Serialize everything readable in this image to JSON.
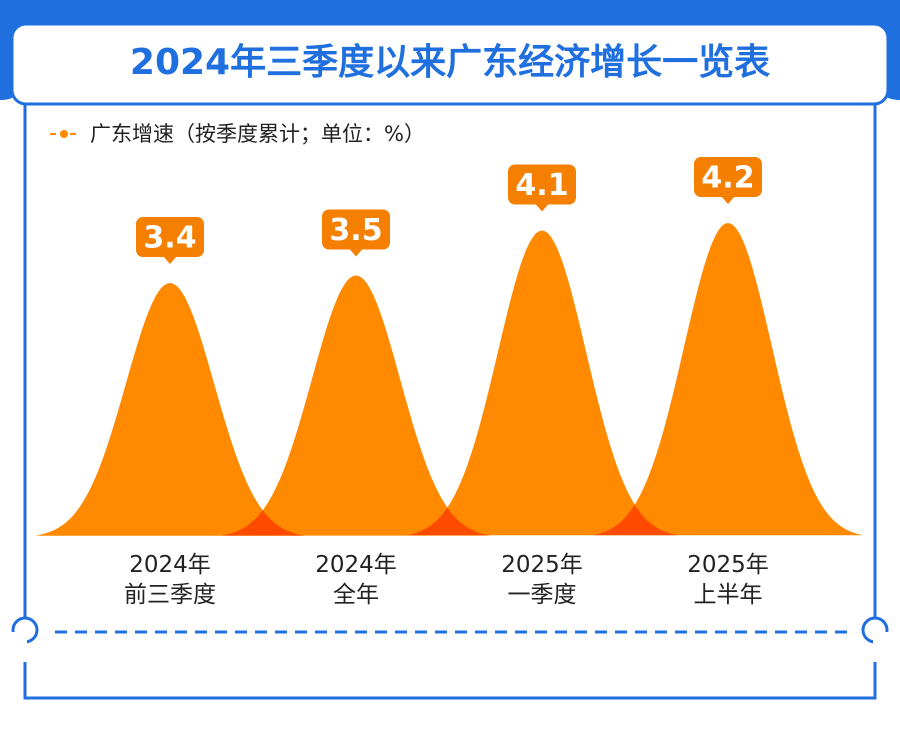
{
  "chart_data": {
    "type": "bell",
    "title": "2024年三季度以来广东经济增长一览表",
    "categories": [
      "2024年\n前三季度",
      "2024年\n全年",
      "2025年\n一季度",
      "2025年\n上半年"
    ],
    "series": [
      {
        "name": "广东增速（按季度累计；单位：%）",
        "color": "#ff8a00",
        "values": [
          3.4,
          3.5,
          4.1,
          4.2
        ]
      }
    ]
  }
}
